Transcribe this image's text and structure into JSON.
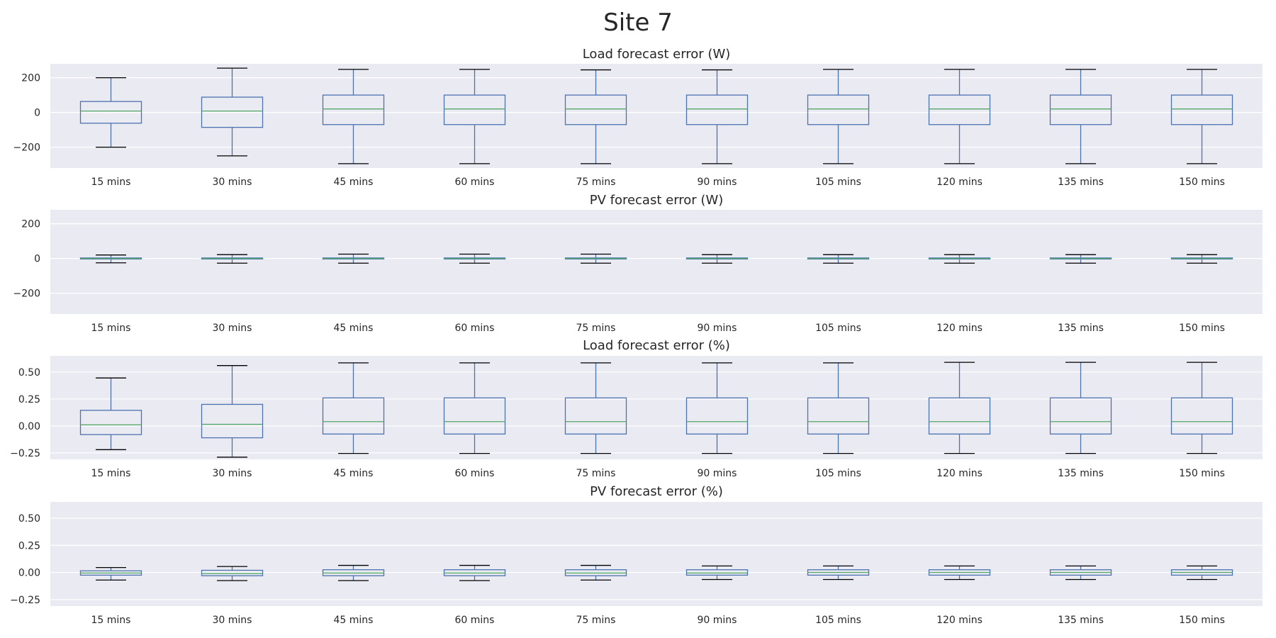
{
  "figure": {
    "title": "Site 7"
  },
  "chart_data": [
    {
      "type": "box",
      "title": "Load forecast error (W)",
      "categories": [
        "15 mins",
        "30 mins",
        "45 mins",
        "60 mins",
        "75 mins",
        "90 mins",
        "105 mins",
        "120 mins",
        "135 mins",
        "150 mins"
      ],
      "ylim": [
        -320,
        280
      ],
      "yticks": [
        200,
        0,
        -200
      ],
      "ytick_labels": [
        "200",
        "0",
        "−200"
      ],
      "grid": true,
      "boxes": [
        {
          "whislo": -200,
          "q1": -62,
          "med": 8,
          "q3": 63,
          "whishi": 200
        },
        {
          "whislo": -250,
          "q1": -86,
          "med": 8,
          "q3": 88,
          "whishi": 255
        },
        {
          "whislo": -295,
          "q1": -70,
          "med": 20,
          "q3": 100,
          "whishi": 248
        },
        {
          "whislo": -295,
          "q1": -70,
          "med": 20,
          "q3": 100,
          "whishi": 248
        },
        {
          "whislo": -295,
          "q1": -70,
          "med": 20,
          "q3": 100,
          "whishi": 245
        },
        {
          "whislo": -295,
          "q1": -70,
          "med": 20,
          "q3": 100,
          "whishi": 245
        },
        {
          "whislo": -295,
          "q1": -70,
          "med": 20,
          "q3": 100,
          "whishi": 248
        },
        {
          "whislo": -295,
          "q1": -70,
          "med": 20,
          "q3": 100,
          "whishi": 248
        },
        {
          "whislo": -295,
          "q1": -70,
          "med": 20,
          "q3": 100,
          "whishi": 248
        },
        {
          "whislo": -295,
          "q1": -70,
          "med": 20,
          "q3": 100,
          "whishi": 248
        }
      ]
    },
    {
      "type": "box",
      "title": "PV forecast error (W)",
      "categories": [
        "15 mins",
        "30 mins",
        "45 mins",
        "60 mins",
        "75 mins",
        "90 mins",
        "105 mins",
        "120 mins",
        "135 mins",
        "150 mins"
      ],
      "ylim": [
        -320,
        280
      ],
      "yticks": [
        200,
        0,
        -200
      ],
      "ytick_labels": [
        "200",
        "0",
        "−200"
      ],
      "grid": true,
      "boxes": [
        {
          "whislo": -25,
          "q1": -3,
          "med": 0,
          "q3": 3,
          "whishi": 20
        },
        {
          "whislo": -27,
          "q1": -3,
          "med": 0,
          "q3": 3,
          "whishi": 22
        },
        {
          "whislo": -27,
          "q1": -3,
          "med": 0,
          "q3": 3,
          "whishi": 25
        },
        {
          "whislo": -27,
          "q1": -3,
          "med": 0,
          "q3": 3,
          "whishi": 25
        },
        {
          "whislo": -27,
          "q1": -3,
          "med": 0,
          "q3": 3,
          "whishi": 25
        },
        {
          "whislo": -27,
          "q1": -3,
          "med": 0,
          "q3": 3,
          "whishi": 22
        },
        {
          "whislo": -27,
          "q1": -3,
          "med": 0,
          "q3": 3,
          "whishi": 22
        },
        {
          "whislo": -27,
          "q1": -3,
          "med": 0,
          "q3": 3,
          "whishi": 22
        },
        {
          "whislo": -27,
          "q1": -3,
          "med": 0,
          "q3": 3,
          "whishi": 22
        },
        {
          "whislo": -27,
          "q1": -3,
          "med": 0,
          "q3": 3,
          "whishi": 22
        }
      ]
    },
    {
      "type": "box",
      "title": "Load forecast error (%)",
      "categories": [
        "15 mins",
        "30 mins",
        "45 mins",
        "60 mins",
        "75 mins",
        "90 mins",
        "105 mins",
        "120 mins",
        "135 mins",
        "150 mins"
      ],
      "ylim": [
        -0.31,
        0.65
      ],
      "yticks": [
        0.5,
        0.25,
        0.0,
        -0.25
      ],
      "ytick_labels": [
        "0.50",
        "0.25",
        "0.00",
        "−0.25"
      ],
      "grid": true,
      "boxes": [
        {
          "whislo": -0.22,
          "q1": -0.08,
          "med": 0.01,
          "q3": 0.145,
          "whishi": 0.445
        },
        {
          "whislo": -0.29,
          "q1": -0.11,
          "med": 0.015,
          "q3": 0.2,
          "whishi": 0.56
        },
        {
          "whislo": -0.255,
          "q1": -0.075,
          "med": 0.04,
          "q3": 0.26,
          "whishi": 0.585
        },
        {
          "whislo": -0.255,
          "q1": -0.075,
          "med": 0.04,
          "q3": 0.26,
          "whishi": 0.585
        },
        {
          "whislo": -0.255,
          "q1": -0.075,
          "med": 0.04,
          "q3": 0.26,
          "whishi": 0.585
        },
        {
          "whislo": -0.255,
          "q1": -0.075,
          "med": 0.04,
          "q3": 0.26,
          "whishi": 0.585
        },
        {
          "whislo": -0.255,
          "q1": -0.075,
          "med": 0.04,
          "q3": 0.26,
          "whishi": 0.585
        },
        {
          "whislo": -0.255,
          "q1": -0.075,
          "med": 0.04,
          "q3": 0.26,
          "whishi": 0.59
        },
        {
          "whislo": -0.255,
          "q1": -0.075,
          "med": 0.04,
          "q3": 0.26,
          "whishi": 0.59
        },
        {
          "whislo": -0.255,
          "q1": -0.075,
          "med": 0.04,
          "q3": 0.26,
          "whishi": 0.59
        }
      ]
    },
    {
      "type": "box",
      "title": "PV forecast error (%)",
      "categories": [
        "15 mins",
        "30 mins",
        "45 mins",
        "60 mins",
        "75 mins",
        "90 mins",
        "105 mins",
        "120 mins",
        "135 mins",
        "150 mins"
      ],
      "ylim": [
        -0.31,
        0.65
      ],
      "yticks": [
        0.5,
        0.25,
        0.0,
        -0.25
      ],
      "ytick_labels": [
        "0.50",
        "0.25",
        "0.00",
        "−0.25"
      ],
      "grid": true,
      "boxes": [
        {
          "whislo": -0.07,
          "q1": -0.025,
          "med": -0.005,
          "q3": 0.015,
          "whishi": 0.045
        },
        {
          "whislo": -0.075,
          "q1": -0.03,
          "med": -0.01,
          "q3": 0.02,
          "whishi": 0.055
        },
        {
          "whislo": -0.075,
          "q1": -0.03,
          "med": -0.005,
          "q3": 0.025,
          "whishi": 0.065
        },
        {
          "whislo": -0.075,
          "q1": -0.03,
          "med": -0.005,
          "q3": 0.025,
          "whishi": 0.065
        },
        {
          "whislo": -0.07,
          "q1": -0.03,
          "med": -0.005,
          "q3": 0.025,
          "whishi": 0.065
        },
        {
          "whislo": -0.065,
          "q1": -0.025,
          "med": -0.005,
          "q3": 0.025,
          "whishi": 0.06
        },
        {
          "whislo": -0.065,
          "q1": -0.025,
          "med": 0.0,
          "q3": 0.025,
          "whishi": 0.06
        },
        {
          "whislo": -0.065,
          "q1": -0.025,
          "med": 0.0,
          "q3": 0.025,
          "whishi": 0.06
        },
        {
          "whislo": -0.065,
          "q1": -0.025,
          "med": 0.0,
          "q3": 0.025,
          "whishi": 0.06
        },
        {
          "whislo": -0.065,
          "q1": -0.025,
          "med": 0.0,
          "q3": 0.025,
          "whishi": 0.06
        }
      ]
    }
  ]
}
